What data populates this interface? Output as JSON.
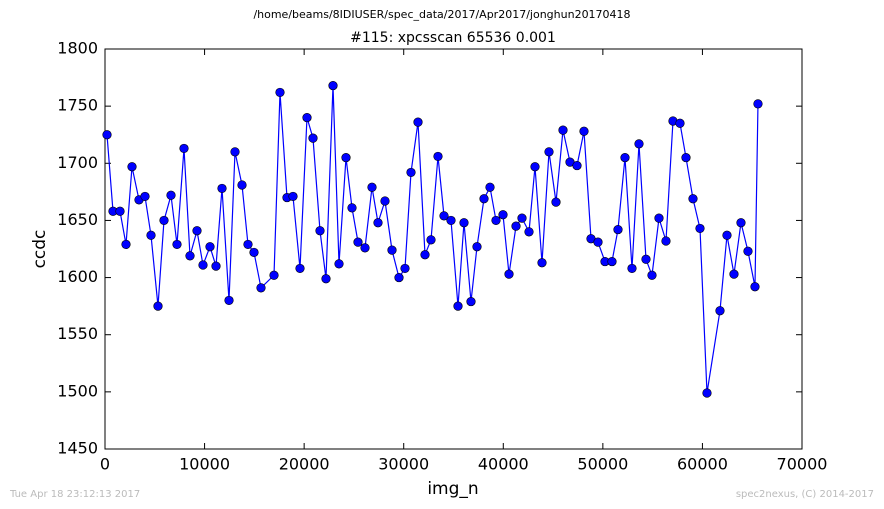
{
  "chart_data": {
    "type": "line",
    "suptitle": "/home/beams/8IDIUSER/spec_data/2017/Apr2017/jonghun20170418",
    "title": "#115: xpcsscan 65536 0.001",
    "xlabel": "img_n",
    "ylabel": "ccdc",
    "footer_left": "Tue Apr 18 23:12:13 2017",
    "footer_right": "spec2nexus, (C) 2014-2017",
    "xlim": [
      0,
      70000
    ],
    "ylim": [
      1450,
      1800
    ],
    "xticks": [
      0,
      10000,
      20000,
      30000,
      40000,
      50000,
      60000,
      70000
    ],
    "yticks": [
      1450,
      1500,
      1550,
      1600,
      1650,
      1700,
      1750,
      1800
    ],
    "grid": false,
    "x": [
      201,
      803,
      1506,
      2109,
      2712,
      3415,
      4017,
      4620,
      5323,
      5925,
      6628,
      7231,
      7934,
      8537,
      9240,
      9842,
      10545,
      11148,
      11751,
      12454,
      13056,
      13759,
      14361,
      14964,
      15667,
      16973,
      17575,
      18278,
      18881,
      19584,
      20287,
      20889,
      21592,
      22195,
      22898,
      23501,
      24204,
      24806,
      25409,
      26112,
      26815,
      27417,
      28120,
      28823,
      29526,
      30129,
      30732,
      31435,
      32138,
      32740,
      33443,
      34046,
      34749,
      35452,
      36054,
      36757,
      37360,
      38063,
      38666,
      39268,
      39971,
      40574,
      41277,
      41879,
      42582,
      43185,
      43888,
      44591,
      45294,
      45997,
      46700,
      47403,
      48106,
      48809,
      49511,
      50214,
      50917,
      51520,
      52223,
      52926,
      53629,
      54332,
      54934,
      55637,
      56340,
      57043,
      57746,
      58349,
      59052,
      59755,
      60458,
      61763,
      62466,
      63169,
      63872,
      64575,
      65278,
      65579
    ],
    "series": [
      {
        "color": "#0000ff",
        "values": [
          1725,
          1658,
          1658,
          1629,
          1697,
          1668,
          1671,
          1637,
          1575,
          1650,
          1672,
          1629,
          1713,
          1619,
          1641,
          1611,
          1627,
          1610,
          1678,
          1580,
          1710,
          1681,
          1629,
          1622,
          1591,
          1602,
          1762,
          1670,
          1671,
          1608,
          1740,
          1722,
          1641,
          1599,
          1768,
          1612,
          1705,
          1661,
          1631,
          1626,
          1679,
          1648,
          1667,
          1624,
          1600,
          1608,
          1692,
          1736,
          1620,
          1633,
          1706,
          1654,
          1650,
          1575,
          1648,
          1579,
          1627,
          1669,
          1679,
          1650,
          1655,
          1603,
          1645,
          1652,
          1640,
          1697,
          1613,
          1710,
          1666,
          1729,
          1701,
          1698,
          1728,
          1634,
          1631,
          1614,
          1614,
          1642,
          1705,
          1608,
          1717,
          1616,
          1602,
          1652,
          1632,
          1737,
          1735,
          1705,
          1669,
          1643,
          1499,
          1571,
          1637,
          1603,
          1648,
          1623,
          1592,
          1752
        ]
      }
    ]
  }
}
